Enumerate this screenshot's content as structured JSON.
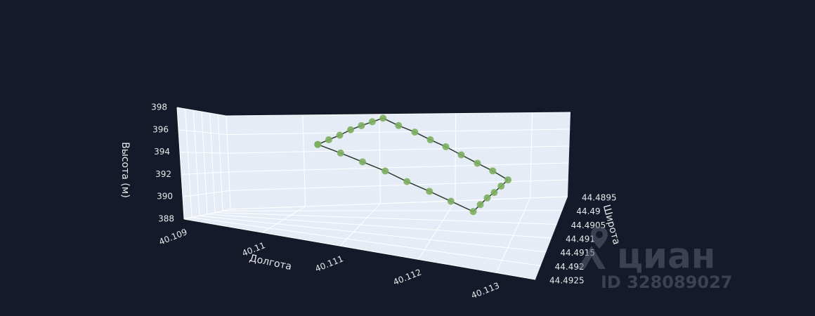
{
  "chart_data": {
    "type": "scatter3d",
    "x_label": "Долгота",
    "y_label": "Широта",
    "z_label": "Высота (м)",
    "xlim": [
      40.109,
      40.1135
    ],
    "ylim": [
      44.4895,
      44.4925
    ],
    "zlim": [
      388,
      398
    ],
    "xticks": [
      40.109,
      40.11,
      40.111,
      40.112,
      40.113
    ],
    "yticks": [
      44.4895,
      44.49,
      44.4905,
      44.491,
      44.4915,
      44.492,
      44.4925
    ],
    "zticks": [
      388,
      390,
      392,
      394,
      396,
      398
    ],
    "grid": true,
    "series": [
      {
        "color": "#7cae5f",
        "line_color": "#2b3a2e",
        "x": [
          40.1105,
          40.1106,
          40.1107,
          40.1108,
          40.1109,
          40.111,
          40.1111,
          40.11131,
          40.11153,
          40.11174,
          40.11195,
          40.11216,
          40.11238,
          40.11259,
          40.1128,
          40.11274,
          40.11268,
          40.11262,
          40.11256,
          40.1125,
          40.11221,
          40.11193,
          40.11164,
          40.11136,
          40.11107,
          40.11079,
          40.1105
        ],
        "y": [
          44.4912,
          44.49097,
          44.49073,
          44.4905,
          44.49027,
          44.49003,
          44.4898,
          44.48985,
          44.4899,
          44.48995,
          44.49,
          44.49005,
          44.4901,
          44.49015,
          44.4902,
          44.4904,
          44.4906,
          44.4908,
          44.491,
          44.4912,
          44.4912,
          44.4912,
          44.4912,
          44.4912,
          44.4912,
          44.4912,
          44.4912
        ],
        "z": [
          395,
          395.4,
          395.8,
          396.3,
          396.7,
          397.1,
          397.5,
          396.7,
          396.0,
          395.2,
          394.5,
          393.7,
          392.9,
          392.2,
          391.4,
          391.1,
          390.8,
          390.6,
          390.3,
          390,
          390.7,
          391.4,
          392.1,
          392.9,
          393.6,
          394.3,
          395
        ]
      }
    ]
  },
  "watermark": {
    "brand": "циан",
    "id": "ID 328089027"
  }
}
